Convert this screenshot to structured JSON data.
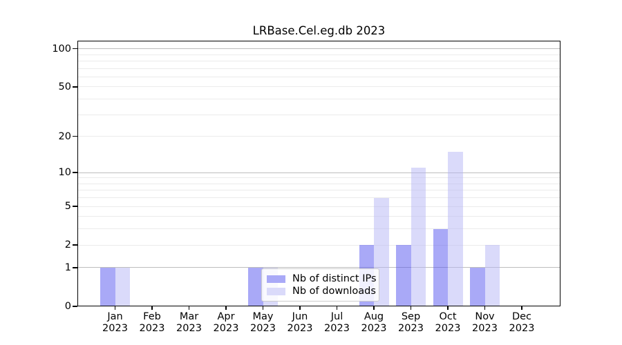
{
  "figure": {
    "background": "#ffffff"
  },
  "chart_data": {
    "type": "bar",
    "title": "LRBase.Cel.eg.db 2023",
    "categories": [
      "Jan 2023",
      "Feb 2023",
      "Mar 2023",
      "Apr 2023",
      "May 2023",
      "Jun 2023",
      "Jul 2023",
      "Aug 2023",
      "Sep 2023",
      "Oct 2023",
      "Nov 2023",
      "Dec 2023"
    ],
    "series": [
      {
        "name": "Nb of distinct IPs",
        "color": "#a9a9f7",
        "fill": "rgba(83,83,239,0.5)",
        "values": [
          1,
          0,
          0,
          0,
          1,
          0,
          0,
          2,
          2,
          3,
          1,
          0
        ]
      },
      {
        "name": "Nb of downloads",
        "color": "#dadafa",
        "fill": "rgba(181,181,245,0.5)",
        "values": [
          1,
          0,
          0,
          0,
          1,
          0,
          0,
          6,
          11,
          15,
          2,
          0
        ]
      }
    ],
    "xlabel": "",
    "ylabel": "",
    "yscale": "log1p",
    "ylim": [
      0,
      116
    ],
    "ytick_values": [
      100,
      50,
      20,
      10,
      5,
      2,
      1,
      0
    ],
    "ytick_labels": [
      "100",
      "50",
      "20",
      "10",
      "5",
      "2",
      "1",
      "0"
    ],
    "grid": true,
    "gridlines_major": [
      1,
      10,
      100
    ],
    "gridlines_minor": [
      2,
      3,
      4,
      5,
      6,
      7,
      8,
      9,
      20,
      30,
      40,
      50,
      60,
      70,
      80,
      90
    ],
    "legend": {
      "position": "inside-bottom-center",
      "items": [
        "Nb of distinct IPs",
        "Nb of downloads"
      ]
    },
    "colors": {
      "bar_distinct_ips": "#a9a9f7",
      "bar_downloads": "#dadafa",
      "grid_major": "#bdbdbd",
      "grid_minor": "#ebebeb",
      "axis": "#000000",
      "legend_border": "#cccccc"
    }
  }
}
